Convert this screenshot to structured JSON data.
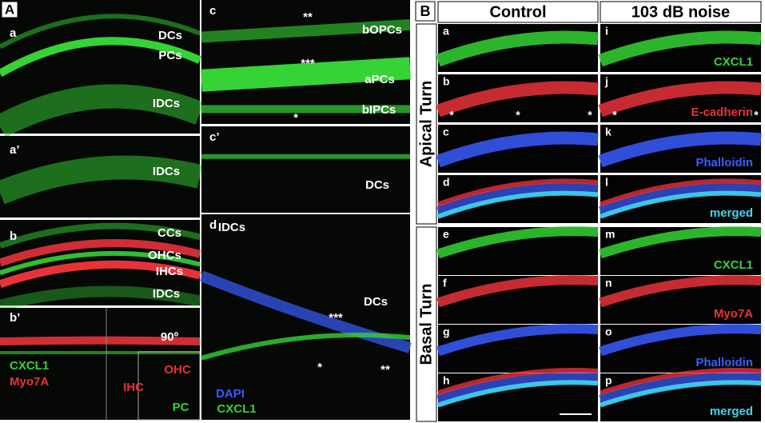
{
  "panel_a": {
    "label": "A",
    "subpanels": [
      {
        "letter": "a",
        "labels": [
          "DCs",
          "PCs",
          "IDCs"
        ]
      },
      {
        "letter": "a’",
        "labels": [
          "IDCs"
        ]
      },
      {
        "letter": "b",
        "labels": [
          "CCs",
          "OHCs",
          "IHCs",
          "IDCs"
        ]
      },
      {
        "letter": "b’",
        "labels": [
          "CXCL1",
          "Myo7A",
          "90º",
          "OHC",
          "IHC",
          "PC"
        ]
      },
      {
        "letter": "c",
        "labels": [
          "**",
          "bOPCs",
          "***",
          "aPCs",
          "bIPCs",
          "*"
        ]
      },
      {
        "letter": "c’",
        "labels": [
          "DCs"
        ]
      },
      {
        "letter": "d",
        "labels": [
          "IDCs",
          "DCs",
          "***",
          "*",
          "**",
          "DAPI",
          "CXCL1"
        ]
      }
    ]
  },
  "panel_b": {
    "label": "B",
    "columns": [
      "Control",
      "103 dB noise"
    ],
    "row_groups": [
      "Apical Turn",
      "Basal Turn"
    ],
    "rows": [
      {
        "letters": [
          "a",
          "i"
        ],
        "stain": "CXCL1",
        "control_marks": [],
        "noise_marks": []
      },
      {
        "letters": [
          "b",
          "j"
        ],
        "stain": "E-cadherin",
        "control_marks": [
          "*",
          "*",
          "*"
        ],
        "noise_marks": [
          "*",
          "*"
        ]
      },
      {
        "letters": [
          "c",
          "k"
        ],
        "stain": "Phalloidin",
        "control_marks": [],
        "noise_marks": []
      },
      {
        "letters": [
          "d",
          "l"
        ],
        "stain": "merged",
        "control_marks": [],
        "noise_marks": []
      },
      {
        "letters": [
          "e",
          "m"
        ],
        "stain": "CXCL1",
        "control_marks": [],
        "noise_marks": []
      },
      {
        "letters": [
          "f",
          "n"
        ],
        "stain": "Myo7A",
        "control_marks": [],
        "noise_marks": []
      },
      {
        "letters": [
          "g",
          "o"
        ],
        "stain": "Phalloidin",
        "control_marks": [],
        "noise_marks": []
      },
      {
        "letters": [
          "h",
          "p"
        ],
        "stain": "merged",
        "control_marks": [],
        "noise_marks": []
      }
    ]
  }
}
